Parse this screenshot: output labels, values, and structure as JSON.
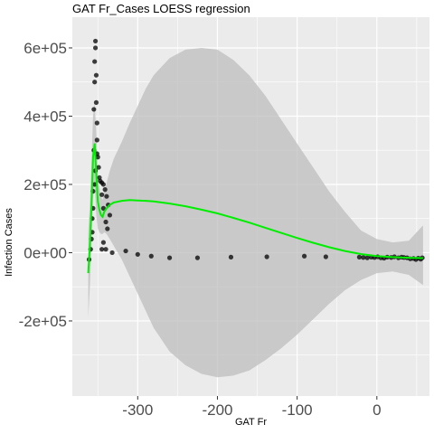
{
  "chart_data": {
    "type": "scatter",
    "title": "GAT Fr_Cases LOESS regression",
    "xlabel": "GAT Fr",
    "ylabel": "Infection Cases",
    "xlim": [
      -382,
      66
    ],
    "ylim": [
      -420000,
      690000
    ],
    "x_ticks": [
      -300,
      -200,
      -100,
      0
    ],
    "x_tick_labels": [
      "-300",
      "-200",
      "-100",
      "0"
    ],
    "y_ticks": [
      -200000,
      0,
      200000,
      400000,
      600000
    ],
    "y_tick_labels": [
      "-2e+05",
      "0e+00",
      "2e+05",
      "4e+05",
      "6e+05"
    ],
    "grid": true,
    "colors": {
      "panel_background": "#ebebeb",
      "gridline": "#ffffff",
      "points": "#000000",
      "loess_line": "#00ee00",
      "confidence_band": "#bebebe"
    },
    "series": [
      {
        "kind": "points",
        "x": [
          -361,
          -359,
          -357,
          -356,
          -355,
          -355,
          -354,
          -354,
          -353,
          -353,
          -352,
          -352,
          -351,
          -351,
          -350,
          -349,
          -348,
          -347,
          -345,
          -343,
          -341,
          -339,
          -337,
          -335,
          -345,
          -343,
          -340,
          -338,
          -343,
          -345,
          -358,
          -357,
          -356,
          -354,
          -353,
          -351,
          -340,
          -332,
          -315,
          -300,
          -283,
          -260,
          -225,
          -183,
          -138,
          -91,
          -64,
          -22,
          -17,
          -12,
          -7,
          -3,
          1,
          5,
          9,
          13,
          18,
          22,
          27,
          31,
          34,
          38,
          42,
          46,
          49,
          52,
          55,
          57
        ],
        "y": [
          -20000,
          10000,
          100000,
          180000,
          300000,
          420000,
          500000,
          560000,
          620000,
          600000,
          520000,
          440000,
          380000,
          330000,
          280000,
          250000,
          220000,
          210000,
          205000,
          200000,
          185000,
          165000,
          140000,
          110000,
          170000,
          130000,
          90000,
          70000,
          30000,
          10000,
          40000,
          60000,
          130000,
          200000,
          240000,
          290000,
          10000,
          0,
          5000,
          -5000,
          -10000,
          -15000,
          -15000,
          -13000,
          -12000,
          -10000,
          -12000,
          -13000,
          -14000,
          -15000,
          -13000,
          -14000,
          -12000,
          -15000,
          -16000,
          -13000,
          -14000,
          -12000,
          -15000,
          -13000,
          -14000,
          -15000,
          -18000,
          -17000,
          -20000,
          -16000,
          -19000,
          -15000
        ]
      },
      {
        "kind": "loess_fit",
        "x": [
          -362,
          -360,
          -358,
          -356,
          -354,
          -352,
          -350,
          -348,
          -346,
          -344,
          -342,
          -339,
          -335,
          -330,
          -320,
          -310,
          -300,
          -290,
          -280,
          -260,
          -240,
          -220,
          -200,
          -180,
          -160,
          -140,
          -120,
          -100,
          -80,
          -60,
          -40,
          -20,
          0,
          20,
          40,
          58
        ],
        "y": [
          -60000,
          20000,
          140000,
          280000,
          320000,
          230000,
          150000,
          125000,
          110000,
          105000,
          120000,
          130000,
          140000,
          147000,
          152000,
          154000,
          153000,
          152000,
          150000,
          144000,
          136000,
          126000,
          115000,
          102000,
          88000,
          73000,
          58000,
          43000,
          29000,
          16000,
          5000,
          -4000,
          -10000,
          -13000,
          -15000,
          -16000
        ],
        "lower": [
          -190000,
          -100000,
          20000,
          160000,
          200000,
          110000,
          70000,
          60000,
          55000,
          55000,
          60000,
          55000,
          40000,
          20000,
          -20000,
          -70000,
          -120000,
          -170000,
          -220000,
          -290000,
          -330000,
          -355000,
          -365000,
          -360000,
          -345000,
          -315000,
          -280000,
          -240000,
          -195000,
          -150000,
          -110000,
          -80000,
          -60000,
          -55000,
          -65000,
          -95000
        ],
        "upper": [
          60000,
          140000,
          260000,
          400000,
          440000,
          350000,
          230000,
          190000,
          165000,
          155000,
          180000,
          205000,
          240000,
          275000,
          325000,
          380000,
          430000,
          480000,
          520000,
          570000,
          595000,
          600000,
          595000,
          565000,
          520000,
          460000,
          390000,
          320000,
          250000,
          180000,
          120000,
          65000,
          40000,
          30000,
          35000,
          80000
        ]
      }
    ]
  }
}
